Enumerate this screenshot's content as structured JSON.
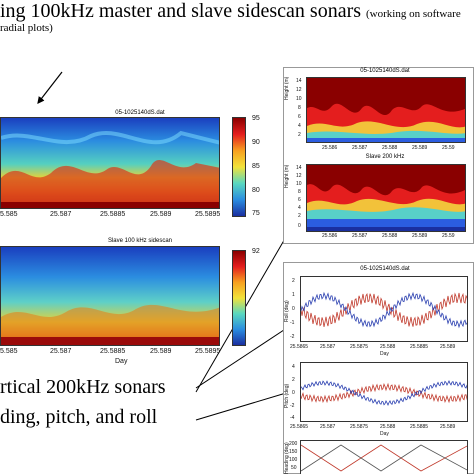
{
  "header": {
    "title_main": "ing 100kHz master and slave sidescan sonars",
    "title_note": "(working on software",
    "subtitle": "radial plots)"
  },
  "footer": {
    "line1": "rtical 200kHz sonars",
    "line2": "ding, pitch, and roll"
  },
  "left_panel": {
    "top_plot": {
      "title": "05-1025140dS.dat",
      "x_ticks": [
        "5.585",
        "25.587",
        "25.5885",
        "25.589",
        "25.5895"
      ],
      "colorbar_ticks": [
        "95",
        "90",
        "85",
        "80",
        "75"
      ]
    },
    "bottom_plot": {
      "title": "Slave 100 kHz sidescan",
      "x_ticks": [
        "5.585",
        "25.587",
        "25.5885",
        "25.589",
        "25.5895"
      ],
      "colorbar_ticks": [
        "92"
      ],
      "xlabel": "Day"
    }
  },
  "right_panel": {
    "top": {
      "title": "05-1025140dS.dat",
      "ylabel": "Height (m)",
      "y_ticks": [
        "14",
        "12",
        "10",
        "8",
        "6",
        "4",
        "2"
      ],
      "x_ticks": [
        "25.586",
        "25.587",
        "25.588",
        "25.589",
        "25.59"
      ]
    },
    "middle": {
      "title": "Slave 200 kHz",
      "ylabel": "Height (m)",
      "y_ticks": [
        "14",
        "12",
        "10",
        "8",
        "6",
        "4",
        "2",
        "0"
      ],
      "x_ticks": [
        "25.586",
        "25.587",
        "25.588",
        "25.589",
        "25.59"
      ]
    },
    "roll": {
      "title": "05-1025140dS.dat",
      "ylabel": "Roll (deg)",
      "y_ticks": [
        "2",
        "1",
        "0",
        "-1",
        "-2"
      ],
      "x_ticks": [
        "25.5865",
        "25.587",
        "25.5875",
        "25.588",
        "25.5885",
        "25.589"
      ],
      "xlabel": "Day"
    },
    "pitch": {
      "ylabel": "Pitch (deg)",
      "y_ticks": [
        "4",
        "2",
        "0",
        "-2",
        "-4"
      ],
      "x_ticks": [
        "25.5865",
        "25.587",
        "25.5875",
        "25.588",
        "25.5885",
        "25.589"
      ],
      "xlabel": "Day"
    },
    "heading": {
      "ylabel": "Heading (deg)",
      "y_ticks": [
        "200",
        "150",
        "100",
        "50"
      ]
    }
  },
  "colors": {
    "series_red": "#c0392b",
    "series_blue": "#2a3fb0"
  }
}
